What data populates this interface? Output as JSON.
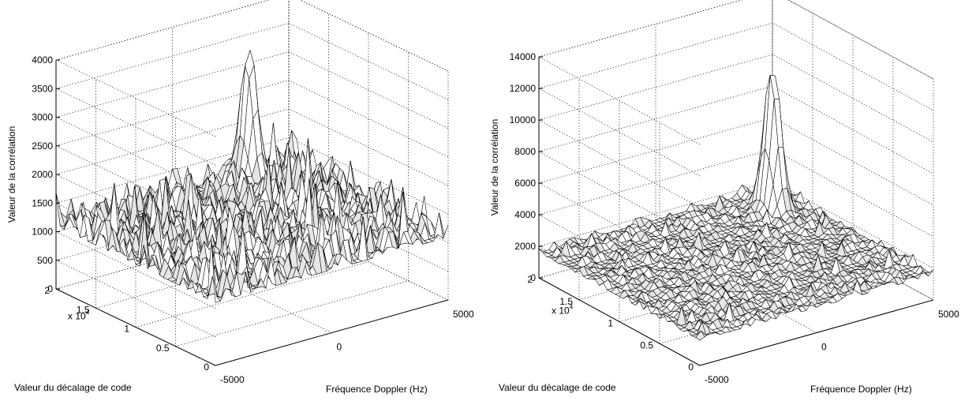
{
  "chart_data": [
    {
      "type": "surface",
      "xlabel": "Fréquence Doppler (Hz)",
      "ylabel": "Valeur du décalage de code",
      "zlabel": "Valeur de la corrélation",
      "x_range": [
        -5000,
        5000
      ],
      "x_ticks": [
        "-5000",
        "0",
        "5000"
      ],
      "y_range": [
        0,
        20000
      ],
      "y_ticks": [
        "0",
        "0.5",
        "1",
        "1.5",
        "2"
      ],
      "y_multiplier": "x 10",
      "y_multiplier_exp": "4",
      "z_range": [
        0,
        4000
      ],
      "z_ticks": [
        "0",
        "500",
        "1000",
        "1500",
        "2000",
        "2500",
        "3000",
        "3500",
        "4000"
      ],
      "noise_floor": 1100,
      "noise_spread": 900,
      "peak": {
        "x": 2750,
        "y": 18400,
        "z": 3500
      },
      "grid": true
    },
    {
      "type": "surface",
      "xlabel": "Fréquence Doppler (Hz)",
      "ylabel": "Valeur du décalage de code",
      "zlabel": "Valeur de la corrélation",
      "x_range": [
        -5000,
        5000
      ],
      "x_ticks": [
        "-5000",
        "0",
        "5000"
      ],
      "y_range": [
        0,
        20000
      ],
      "y_ticks": [
        "0",
        "0.5",
        "1",
        "1.5",
        "2"
      ],
      "y_multiplier": "x 10",
      "y_multiplier_exp": "4",
      "z_range": [
        0,
        14000
      ],
      "z_ticks": [
        "0",
        "2000",
        "4000",
        "6000",
        "8000",
        "10000",
        "12000",
        "14000"
      ],
      "noise_floor": 1600,
      "noise_spread": 900,
      "peak": {
        "x": 3800,
        "y": 16500,
        "z": 11000
      },
      "grid": true
    }
  ]
}
